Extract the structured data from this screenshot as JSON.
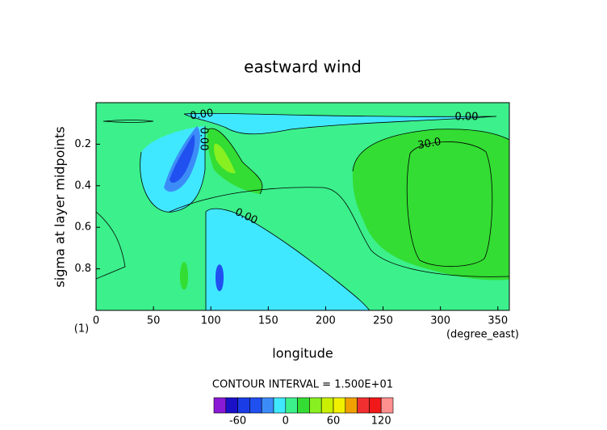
{
  "chart_data": {
    "type": "contour",
    "title": "eastward wind",
    "x_label": "longitude",
    "x_unit": "(degree_east)",
    "y_label": "sigma at layer midpoints",
    "corner_label": "(1)",
    "xlim": [
      0,
      360
    ],
    "xticks": [
      0,
      50,
      100,
      150,
      200,
      250,
      300,
      350
    ],
    "ylim": [
      1.0,
      0.0
    ],
    "yticks": [
      0.2,
      0.4,
      0.6,
      0.8
    ],
    "contour_interval_text": "CONTOUR INTERVAL = 1.500E+01",
    "contour_labels": [
      "0.00",
      "0.00",
      "0.00",
      "0.00",
      "30.0"
    ],
    "colorbar": {
      "levels": [
        -90,
        -75,
        -60,
        -45,
        -30,
        -15,
        0,
        15,
        30,
        45,
        60,
        75,
        90,
        105,
        120,
        135
      ],
      "colors": [
        "#8a1ad6",
        "#1a10c8",
        "#1a3ce6",
        "#2050f0",
        "#3c8cf8",
        "#40e8ff",
        "#3cf08c",
        "#33dd33",
        "#88f020",
        "#c8f000",
        "#f0f000",
        "#f0a000",
        "#f03030",
        "#f01818",
        "#ff9090"
      ],
      "ticks": [
        -60,
        0,
        60,
        120
      ]
    }
  }
}
